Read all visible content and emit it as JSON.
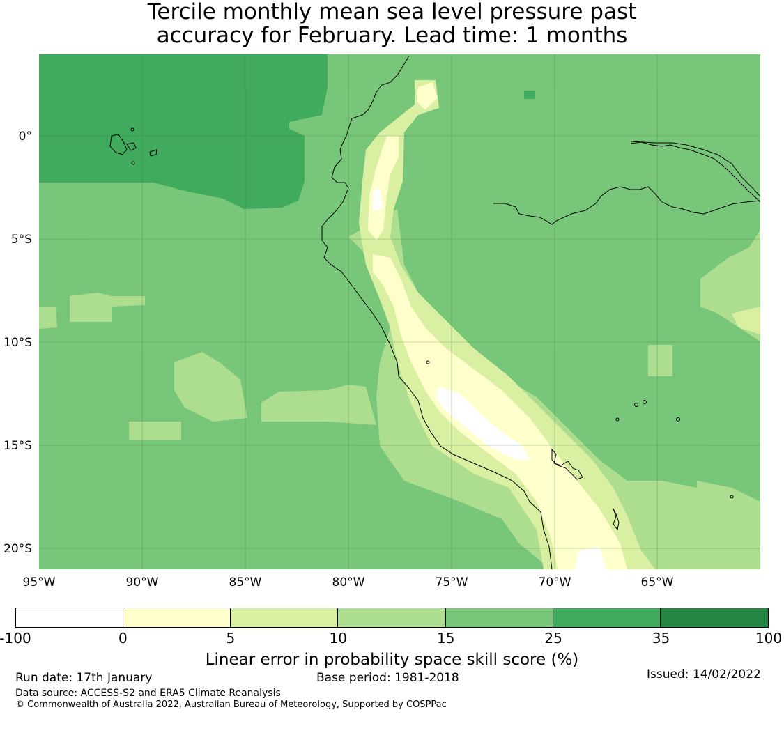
{
  "title_line1": "Tercile monthly mean sea level pressure past",
  "title_line2": "accuracy for February. Lead time: 1 months",
  "map": {
    "lon_labels": [
      "95°W",
      "90°W",
      "85°W",
      "80°W",
      "75°W",
      "70°W",
      "65°W"
    ],
    "lat_labels": [
      "0°",
      "5°S",
      "10°S",
      "15°S",
      "20°S"
    ]
  },
  "colorbar": {
    "ticks": [
      "-100",
      "0",
      "5",
      "10",
      "15",
      "25",
      "35",
      "100"
    ],
    "colors": [
      "#ffffff",
      "#ffffcc",
      "#d9f0a3",
      "#addd8e",
      "#78c679",
      "#41ab5d",
      "#238443"
    ],
    "label": "Linear error in probability space skill score (%)"
  },
  "footer": {
    "run_date": "Run date: 17th January",
    "base_period": "Base period: 1981-2018",
    "issued": "Issued: 14/02/2022",
    "data_source": "Data source: ACCESS-S2 and ERA5 Climate Reanalysis",
    "copyright": "© Commonwealth of Australia 2022, Australian Bureau of Meteorology, Supported by COSPPac"
  }
}
